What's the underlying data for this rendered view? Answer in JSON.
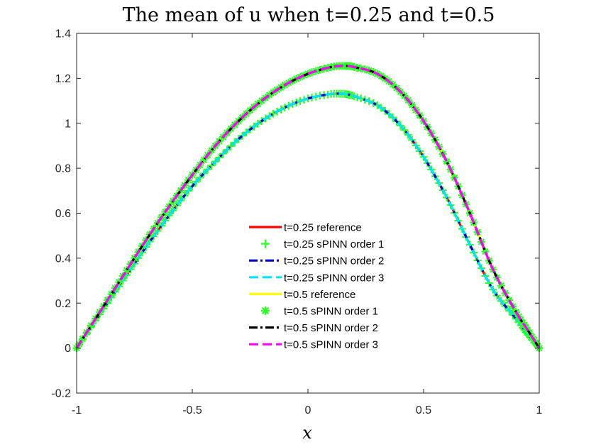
{
  "chart_data": {
    "type": "line",
    "title": "The mean of u when t=0.25 and t=0.5",
    "xlabel": "x",
    "ylabel": "",
    "xlim": [
      -1,
      1
    ],
    "ylim": [
      -0.2,
      1.4
    ],
    "xticks": [
      -1,
      -0.5,
      0,
      0.5,
      1
    ],
    "xtick_labels": [
      "-1",
      "-0.5",
      "0",
      "0.5",
      "1"
    ],
    "yticks": [
      -0.2,
      0,
      0.2,
      0.4,
      0.6,
      0.8,
      1,
      1.2,
      1.4
    ],
    "ytick_labels": [
      "-0.2",
      "0",
      "0.2",
      "0.4",
      "0.6",
      "0.8",
      "1",
      "1.2",
      "1.4"
    ],
    "grid": false,
    "legend_position": "center-bottom",
    "x": [
      -1.0,
      -0.9,
      -0.8,
      -0.7,
      -0.6,
      -0.5,
      -0.4,
      -0.3,
      -0.2,
      -0.1,
      0.0,
      0.1,
      0.16,
      0.2,
      0.3,
      0.4,
      0.5,
      0.6,
      0.7,
      0.8,
      0.9,
      0.95,
      1.0
    ],
    "series": [
      {
        "name": "t=0.25 reference",
        "color": "#ff0000",
        "style": "solid",
        "marker": "none",
        "values": [
          0.0,
          0.15,
          0.3,
          0.45,
          0.59,
          0.72,
          0.83,
          0.93,
          1.01,
          1.07,
          1.11,
          1.13,
          1.13,
          1.12,
          1.08,
          0.99,
          0.85,
          0.67,
          0.46,
          0.26,
          0.13,
          0.06,
          0.0
        ]
      },
      {
        "name": "t=0.25 sPINN order 1",
        "color": "#33ff33",
        "style": "none",
        "marker": "plus",
        "values": [
          0.0,
          0.15,
          0.3,
          0.45,
          0.59,
          0.72,
          0.83,
          0.93,
          1.01,
          1.07,
          1.11,
          1.13,
          1.13,
          1.12,
          1.08,
          0.99,
          0.85,
          0.67,
          0.46,
          0.26,
          0.13,
          0.06,
          0.0
        ]
      },
      {
        "name": "t=0.25 sPINN order 2",
        "color": "#0000cc",
        "style": "dashdot",
        "marker": "none",
        "values": [
          0.0,
          0.15,
          0.3,
          0.45,
          0.59,
          0.72,
          0.83,
          0.93,
          1.01,
          1.07,
          1.11,
          1.13,
          1.13,
          1.12,
          1.08,
          0.99,
          0.85,
          0.67,
          0.46,
          0.26,
          0.13,
          0.06,
          0.0
        ]
      },
      {
        "name": "t=0.25 sPINN order 3",
        "color": "#00e5ff",
        "style": "dashed",
        "marker": "none",
        "values": [
          0.0,
          0.15,
          0.3,
          0.45,
          0.59,
          0.72,
          0.83,
          0.93,
          1.01,
          1.07,
          1.11,
          1.13,
          1.13,
          1.12,
          1.08,
          0.99,
          0.85,
          0.67,
          0.46,
          0.26,
          0.13,
          0.06,
          0.0
        ]
      },
      {
        "name": "t=0.5 reference",
        "color": "#ffff00",
        "style": "solid",
        "marker": "none",
        "values": [
          0.0,
          0.16,
          0.32,
          0.48,
          0.63,
          0.77,
          0.9,
          1.01,
          1.1,
          1.17,
          1.22,
          1.25,
          1.255,
          1.25,
          1.22,
          1.14,
          1.01,
          0.83,
          0.6,
          0.35,
          0.16,
          0.08,
          0.0
        ]
      },
      {
        "name": "t=0.5 sPINN order 1",
        "color": "#33ff33",
        "style": "none",
        "marker": "asterisk",
        "values": [
          0.0,
          0.16,
          0.32,
          0.48,
          0.63,
          0.77,
          0.9,
          1.01,
          1.1,
          1.17,
          1.22,
          1.25,
          1.255,
          1.25,
          1.22,
          1.14,
          1.01,
          0.83,
          0.6,
          0.35,
          0.16,
          0.08,
          0.0
        ]
      },
      {
        "name": "t=0.5 sPINN order 2",
        "color": "#000000",
        "style": "dashdot",
        "marker": "none",
        "values": [
          0.0,
          0.16,
          0.32,
          0.48,
          0.63,
          0.77,
          0.9,
          1.01,
          1.1,
          1.17,
          1.22,
          1.25,
          1.255,
          1.25,
          1.22,
          1.14,
          1.01,
          0.83,
          0.6,
          0.35,
          0.16,
          0.08,
          0.0
        ]
      },
      {
        "name": "t=0.5 sPINN order 3",
        "color": "#ff00ff",
        "style": "dashed",
        "marker": "none",
        "values": [
          0.0,
          0.16,
          0.32,
          0.48,
          0.63,
          0.77,
          0.9,
          1.01,
          1.1,
          1.17,
          1.22,
          1.25,
          1.255,
          1.25,
          1.22,
          1.14,
          1.01,
          0.83,
          0.6,
          0.35,
          0.16,
          0.08,
          0.0
        ]
      }
    ]
  }
}
